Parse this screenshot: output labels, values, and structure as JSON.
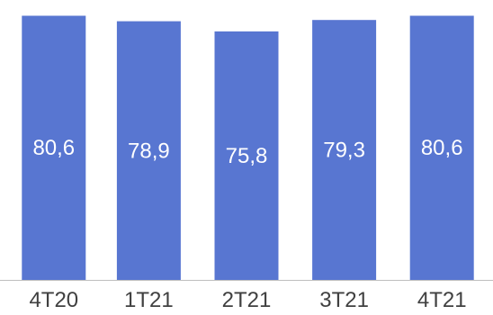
{
  "chart_data": {
    "type": "bar",
    "categories": [
      "4T20",
      "1T21",
      "2T21",
      "3T21",
      "4T21"
    ],
    "values": [
      80.6,
      78.9,
      75.8,
      79.3,
      80.6
    ],
    "value_labels": [
      "80,6",
      "78,9",
      "75,8",
      "79,3",
      "80,6"
    ],
    "title": "",
    "xlabel": "",
    "ylabel": "",
    "ylim": [
      0,
      81
    ],
    "grid": false,
    "legend": "none",
    "colors": {
      "bar": "#5876d1",
      "bar_label": "#ffffff",
      "tick_label": "#404040",
      "axis": "#bfbfbf"
    }
  }
}
